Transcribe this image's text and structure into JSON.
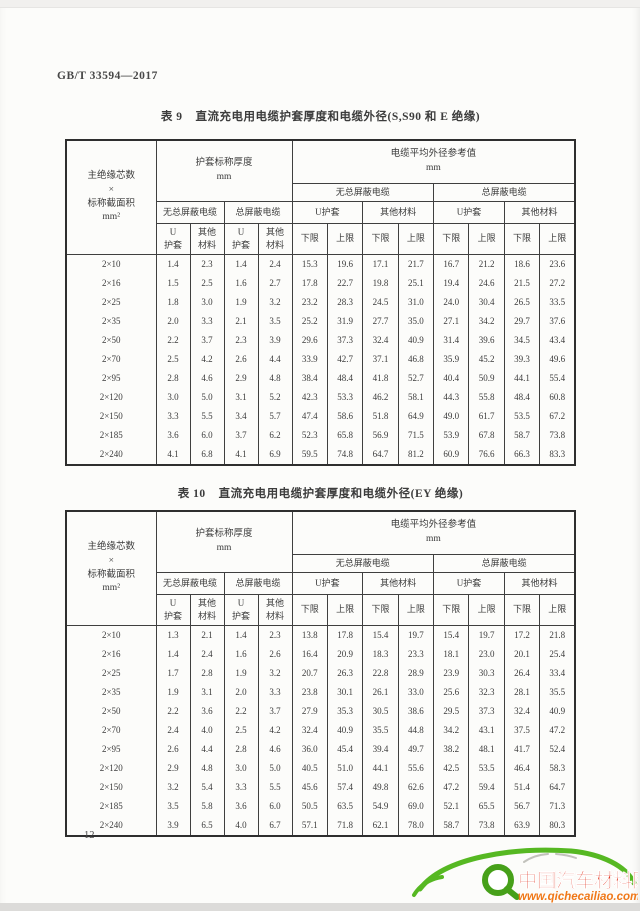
{
  "page": {
    "doc_number": "GB/T 33594—2017",
    "page_number": "12"
  },
  "header_labels": {
    "axis_cell": "主绝缘芯数\n×\n标称截面积\nmm²",
    "thickness_group": "护套标称厚度\nmm",
    "diameter_group": "电缆平均外径参考值\nmm",
    "unshielded": "无总屏蔽电缆",
    "shielded": "总屏蔽电缆",
    "u_sheath": "U护套",
    "other_material": "其他材料",
    "u_sheath_2line": "U\n护套",
    "other_material_2line": "其他\n材料",
    "lower": "下限",
    "upper": "上限"
  },
  "table9": {
    "caption_label": "表 9",
    "caption_title": "直流充电用电缆护套厚度和电缆外径(S,S90 和 E 绝缘)",
    "rows": [
      [
        "2×10",
        "1.4",
        "2.3",
        "1.4",
        "2.4",
        "15.3",
        "19.6",
        "17.1",
        "21.7",
        "16.7",
        "21.2",
        "18.6",
        "23.6"
      ],
      [
        "2×16",
        "1.5",
        "2.5",
        "1.6",
        "2.7",
        "17.8",
        "22.7",
        "19.8",
        "25.1",
        "19.4",
        "24.6",
        "21.5",
        "27.2"
      ],
      [
        "2×25",
        "1.8",
        "3.0",
        "1.9",
        "3.2",
        "23.2",
        "28.3",
        "24.5",
        "31.0",
        "24.0",
        "30.4",
        "26.5",
        "33.5"
      ],
      [
        "2×35",
        "2.0",
        "3.3",
        "2.1",
        "3.5",
        "25.2",
        "31.9",
        "27.7",
        "35.0",
        "27.1",
        "34.2",
        "29.7",
        "37.6"
      ],
      [
        "2×50",
        "2.2",
        "3.7",
        "2.3",
        "3.9",
        "29.6",
        "37.3",
        "32.4",
        "40.9",
        "31.4",
        "39.6",
        "34.5",
        "43.4"
      ],
      [
        "2×70",
        "2.5",
        "4.2",
        "2.6",
        "4.4",
        "33.9",
        "42.7",
        "37.1",
        "46.8",
        "35.9",
        "45.2",
        "39.3",
        "49.6"
      ],
      [
        "2×95",
        "2.8",
        "4.6",
        "2.9",
        "4.8",
        "38.4",
        "48.4",
        "41.8",
        "52.7",
        "40.4",
        "50.9",
        "44.1",
        "55.4"
      ],
      [
        "2×120",
        "3.0",
        "5.0",
        "3.1",
        "5.2",
        "42.3",
        "53.3",
        "46.2",
        "58.1",
        "44.3",
        "55.8",
        "48.4",
        "60.8"
      ],
      [
        "2×150",
        "3.3",
        "5.5",
        "3.4",
        "5.7",
        "47.4",
        "58.6",
        "51.8",
        "64.9",
        "49.0",
        "61.7",
        "53.5",
        "67.2"
      ],
      [
        "2×185",
        "3.6",
        "6.0",
        "3.7",
        "6.2",
        "52.3",
        "65.8",
        "56.9",
        "71.5",
        "53.9",
        "67.8",
        "58.7",
        "73.8"
      ],
      [
        "2×240",
        "4.1",
        "6.8",
        "4.1",
        "6.9",
        "59.5",
        "74.8",
        "64.7",
        "81.2",
        "60.9",
        "76.6",
        "66.3",
        "83.3"
      ]
    ]
  },
  "table10": {
    "caption_label": "表 10",
    "caption_title": "直流充电用电缆护套厚度和电缆外径(EY 绝缘)",
    "rows": [
      [
        "2×10",
        "1.3",
        "2.1",
        "1.4",
        "2.3",
        "13.8",
        "17.8",
        "15.4",
        "19.7",
        "15.4",
        "19.7",
        "17.2",
        "21.8"
      ],
      [
        "2×16",
        "1.4",
        "2.4",
        "1.6",
        "2.6",
        "16.4",
        "20.9",
        "18.3",
        "23.3",
        "18.1",
        "23.0",
        "20.1",
        "25.4"
      ],
      [
        "2×25",
        "1.7",
        "2.8",
        "1.9",
        "3.2",
        "20.7",
        "26.3",
        "22.8",
        "28.9",
        "23.9",
        "30.3",
        "26.4",
        "33.4"
      ],
      [
        "2×35",
        "1.9",
        "3.1",
        "2.0",
        "3.3",
        "23.8",
        "30.1",
        "26.1",
        "33.0",
        "25.6",
        "32.3",
        "28.1",
        "35.5"
      ],
      [
        "2×50",
        "2.2",
        "3.6",
        "2.2",
        "3.7",
        "27.9",
        "35.3",
        "30.5",
        "38.6",
        "29.5",
        "37.3",
        "32.4",
        "40.9"
      ],
      [
        "2×70",
        "2.4",
        "4.0",
        "2.5",
        "4.2",
        "32.4",
        "40.9",
        "35.5",
        "44.8",
        "34.2",
        "43.1",
        "37.5",
        "47.2"
      ],
      [
        "2×95",
        "2.6",
        "4.4",
        "2.8",
        "4.6",
        "36.0",
        "45.4",
        "39.4",
        "49.7",
        "38.2",
        "48.1",
        "41.7",
        "52.4"
      ],
      [
        "2×120",
        "2.9",
        "4.8",
        "3.0",
        "5.0",
        "40.5",
        "51.0",
        "44.1",
        "55.6",
        "42.5",
        "53.5",
        "46.4",
        "58.3"
      ],
      [
        "2×150",
        "3.2",
        "5.4",
        "3.3",
        "5.5",
        "45.6",
        "57.4",
        "49.8",
        "62.6",
        "47.2",
        "59.4",
        "51.4",
        "64.7"
      ],
      [
        "2×185",
        "3.5",
        "5.8",
        "3.6",
        "6.0",
        "50.5",
        "63.5",
        "54.9",
        "69.0",
        "52.1",
        "65.5",
        "56.7",
        "71.3"
      ],
      [
        "2×240",
        "3.9",
        "6.5",
        "4.0",
        "6.7",
        "57.1",
        "71.8",
        "62.1",
        "78.0",
        "58.7",
        "73.8",
        "63.9",
        "80.3"
      ]
    ]
  },
  "watermark": {
    "site_name": "中国汽车材料网",
    "site_url": "www.qichecailiao.com",
    "green": "#56b822",
    "dark_green": "#46a019",
    "red": "#e23c28",
    "orange": "#f07818"
  }
}
